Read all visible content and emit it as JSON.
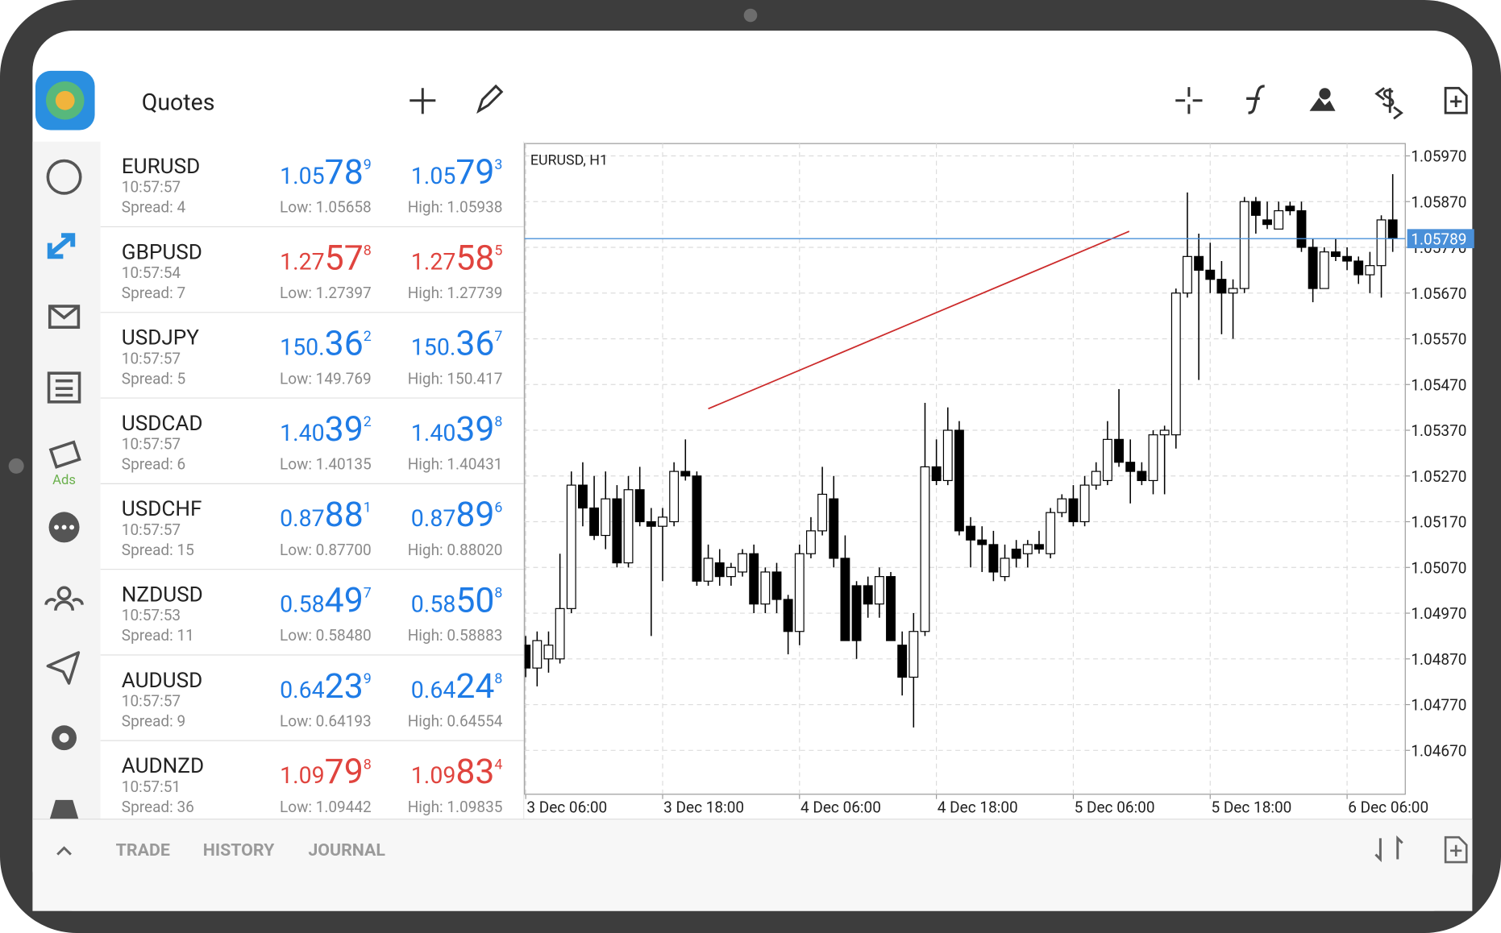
{
  "header": {
    "title": "Quotes"
  },
  "sidebar": {
    "ads": "Ads"
  },
  "quotes": [
    {
      "symbol": "EURUSD",
      "time": "10:57:57",
      "spread": "Spread: 4",
      "bid": 1.05789,
      "ask": 1.05793,
      "low": "Low: 1.05658",
      "high": "High: 1.05938",
      "color": "#1e7be6"
    },
    {
      "symbol": "GBPUSD",
      "time": "10:57:54",
      "spread": "Spread: 7",
      "bid": 1.27578,
      "ask": 1.27585,
      "low": "Low: 1.27397",
      "high": "High: 1.27739",
      "color": "#e0443e"
    },
    {
      "symbol": "USDJPY",
      "time": "10:57:57",
      "spread": "Spread: 5",
      "bid": 150.362,
      "ask": 150.367,
      "low": "Low: 149.769",
      "high": "High: 150.417",
      "color": "#1e7be6"
    },
    {
      "symbol": "USDCAD",
      "time": "10:57:57",
      "spread": "Spread: 6",
      "bid": 1.40392,
      "ask": 1.40398,
      "low": "Low: 1.40135",
      "high": "High: 1.40431",
      "color": "#1e7be6"
    },
    {
      "symbol": "USDCHF",
      "time": "10:57:57",
      "spread": "Spread: 15",
      "bid": 0.87881,
      "ask": 0.87896,
      "low": "Low: 0.87700",
      "high": "High: 0.88020",
      "color": "#1e7be6"
    },
    {
      "symbol": "NZDUSD",
      "time": "10:57:53",
      "spread": "Spread: 11",
      "bid": 0.58497,
      "ask": 0.58508,
      "low": "Low: 0.58480",
      "high": "High: 0.58883",
      "color": "#1e7be6"
    },
    {
      "symbol": "AUDUSD",
      "time": "10:57:57",
      "spread": "Spread: 9",
      "bid": 0.64239,
      "ask": 0.64248,
      "low": "Low: 0.64193",
      "high": "High: 0.64554",
      "color": "#1e7be6"
    },
    {
      "symbol": "AUDNZD",
      "time": "10:57:51",
      "spread": "Spread: 36",
      "bid": 1.09798,
      "ask": 1.09834,
      "low": "Low: 1.09442",
      "high": "High: 1.09835",
      "color": "#e0443e"
    }
  ],
  "chart_data": {
    "type": "candlestick",
    "title": "EURUSD, H1",
    "open": [
      1.049,
      1.0485,
      1.0487,
      1.0487,
      1.0498,
      1.0525,
      1.052,
      1.0514,
      1.0522,
      1.0508,
      1.0524,
      1.0517,
      1.0516,
      1.0517,
      1.0528,
      1.0527,
      1.0504,
      1.0508,
      1.0505,
      1.0506,
      1.051,
      1.0499,
      1.0506,
      1.05,
      1.0493,
      1.051,
      1.0515,
      1.0522,
      1.0509,
      1.0503,
      1.0503,
      1.0499,
      1.0505,
      1.049,
      1.0483,
      1.0493,
      1.0529,
      1.0526,
      1.0537,
      1.0516,
      1.0513,
      1.0512,
      1.0505,
      1.0511,
      1.051,
      1.0512,
      1.051,
      1.0519,
      1.0522,
      1.0517,
      1.0525,
      1.0526,
      1.0535,
      1.053,
      1.0528,
      1.0526,
      1.0536,
      1.0536,
      1.0567,
      1.0575,
      1.0572,
      1.057,
      1.0567,
      1.0568,
      1.0587,
      1.0583,
      1.0581,
      1.0586,
      1.0585,
      1.0577,
      1.0568,
      1.0576,
      1.0575,
      1.0574,
      1.0571,
      1.0573,
      1.0583
    ],
    "high": [
      1.0492,
      1.0493,
      1.0493,
      1.051,
      1.0528,
      1.053,
      1.0527,
      1.0528,
      1.0525,
      1.0527,
      1.0529,
      1.052,
      1.052,
      1.053,
      1.0535,
      1.0528,
      1.0512,
      1.0511,
      1.0508,
      1.0511,
      1.0512,
      1.0507,
      1.0508,
      1.0501,
      1.0512,
      1.0518,
      1.0529,
      1.0527,
      1.0514,
      1.0504,
      1.0505,
      1.0507,
      1.0506,
      1.0493,
      1.0497,
      1.0543,
      1.0535,
      1.0542,
      1.0539,
      1.0518,
      1.0516,
      1.0515,
      1.0512,
      1.0513,
      1.0513,
      1.0515,
      1.052,
      1.0523,
      1.0525,
      1.0527,
      1.053,
      1.0539,
      1.0546,
      1.0535,
      1.053,
      1.0537,
      1.0538,
      1.0568,
      1.0589,
      1.058,
      1.0578,
      1.0574,
      1.057,
      1.0588,
      1.0588,
      1.0587,
      1.0587,
      1.0587,
      1.0587,
      1.0579,
      1.0577,
      1.0579,
      1.0577,
      1.0575,
      1.0576,
      1.0584,
      1.0593
    ],
    "low": [
      1.0483,
      1.0481,
      1.0484,
      1.0486,
      1.0497,
      1.0516,
      1.0513,
      1.0511,
      1.0507,
      1.0507,
      1.0516,
      1.0492,
      1.0504,
      1.0516,
      1.0526,
      1.0503,
      1.0503,
      1.0503,
      1.0503,
      1.0505,
      1.0497,
      1.0497,
      1.0497,
      1.0488,
      1.049,
      1.0509,
      1.0514,
      1.0507,
      1.0491,
      1.0487,
      1.0496,
      1.0496,
      1.0491,
      1.0479,
      1.0472,
      1.0492,
      1.0525,
      1.0525,
      1.0514,
      1.0507,
      1.0506,
      1.0504,
      1.0504,
      1.0507,
      1.0507,
      1.051,
      1.0509,
      1.0518,
      1.0516,
      1.0516,
      1.0524,
      1.0525,
      1.0529,
      1.0521,
      1.0525,
      1.0523,
      1.0523,
      1.0533,
      1.0566,
      1.0548,
      1.0567,
      1.0558,
      1.0557,
      1.0567,
      1.058,
      1.0581,
      1.0581,
      1.0584,
      1.0576,
      1.0565,
      1.0568,
      1.0574,
      1.0572,
      1.0569,
      1.0567,
      1.0566,
      1.0576
    ],
    "close": [
      1.0485,
      1.0491,
      1.049,
      1.0498,
      1.0525,
      1.052,
      1.0514,
      1.0522,
      1.0508,
      1.0524,
      1.0517,
      1.0516,
      1.0518,
      1.0528,
      1.0527,
      1.0504,
      1.0509,
      1.0505,
      1.0507,
      1.051,
      1.0499,
      1.0506,
      1.05,
      1.0493,
      1.051,
      1.0515,
      1.0523,
      1.0509,
      1.0491,
      1.0491,
      1.0499,
      1.0505,
      1.0491,
      1.0483,
      1.0493,
      1.0529,
      1.0526,
      1.0537,
      1.0515,
      1.0513,
      1.0512,
      1.0506,
      1.0509,
      1.0509,
      1.0512,
      1.0511,
      1.0519,
      1.0522,
      1.0517,
      1.0525,
      1.0528,
      1.0535,
      1.053,
      1.0528,
      1.0526,
      1.0536,
      1.0537,
      1.0567,
      1.0575,
      1.0572,
      1.057,
      1.0567,
      1.0568,
      1.0587,
      1.0584,
      1.0582,
      1.0585,
      1.0585,
      1.0577,
      1.0568,
      1.0576,
      1.0575,
      1.0574,
      1.0571,
      1.0573,
      1.0583,
      1.0579
    ],
    "up_color": "#ffffff",
    "down_color": "#000000",
    "xlim": [
      -0.1,
      77.1
    ],
    "xticks": [
      {
        "value": 0,
        "label": "3 Dec 06:00"
      },
      {
        "value": 12,
        "label": "3 Dec 18:00"
      },
      {
        "value": 24,
        "label": "4 Dec 06:00"
      },
      {
        "value": 36,
        "label": "4 Dec 18:00"
      },
      {
        "value": 48,
        "label": "5 Dec 06:00"
      },
      {
        "value": 60,
        "label": "5 Dec 18:00"
      },
      {
        "value": 72,
        "label": "6 Dec 06:00"
      }
    ],
    "ylim": [
      1.04574,
      1.05997
    ],
    "yticks": [
      {
        "value": 1.0597,
        "label": "1.05970"
      },
      {
        "value": 1.0587,
        "label": "1.05870"
      },
      {
        "value": 1.0577,
        "label": "1.05770"
      },
      {
        "value": 1.0567,
        "label": "1.05670"
      },
      {
        "value": 1.0557,
        "label": "1.05570"
      },
      {
        "value": 1.0547,
        "label": "1.05470"
      },
      {
        "value": 1.0537,
        "label": "1.05370"
      },
      {
        "value": 1.0527,
        "label": "1.05270"
      },
      {
        "value": 1.0517,
        "label": "1.05170"
      },
      {
        "value": 1.0507,
        "label": "1.05070"
      },
      {
        "value": 1.0497,
        "label": "1.04970"
      },
      {
        "value": 1.0487,
        "label": "1.04870"
      },
      {
        "value": 1.0477,
        "label": "1.04770"
      },
      {
        "value": 1.0467,
        "label": "1.04670"
      }
    ],
    "grid": true,
    "current_price": 1.05789,
    "current_price_color": "#4a90d9",
    "trendline": {
      "x": [
        16.0,
        52.9
      ],
      "y": [
        1.05417,
        1.05805
      ],
      "color": "#cc2b2b"
    }
  },
  "tabs": [
    "TRADE",
    "HISTORY",
    "JOURNAL"
  ]
}
